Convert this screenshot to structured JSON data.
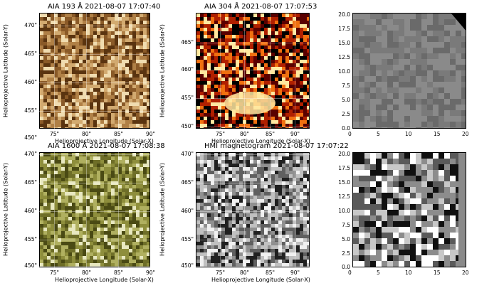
{
  "panels": [
    {
      "title": "AIA 193 Å 2021-08-07 17:07:40",
      "xlabel": "Helioprojective Longitude (Solar-X)",
      "ylabel": "Helioprojective Latitude (Solar-Y)",
      "xticks": [
        "75\"",
        "80\"",
        "85\"",
        "90\""
      ],
      "yticks": [
        "470\"",
        "465\"",
        "460\"",
        "455\"",
        "450\""
      ]
    },
    {
      "title": "AIA 304 Å 2021-08-07 17:07:53",
      "xlabel": "Helioprojective Longitude (Solar-X)",
      "ylabel": "Helioprojective Latitude (Solar-Y)",
      "xticks": [
        "75\"",
        "80\"",
        "85\"",
        "90\""
      ],
      "yticks": [
        "465\"",
        "460\"",
        "455\"",
        "450\""
      ]
    },
    {
      "title": "",
      "xlabel": "",
      "ylabel": "",
      "xticks": [
        "0",
        "5",
        "10",
        "15",
        "20"
      ],
      "yticks": [
        "20.0",
        "17.5",
        "15.0",
        "12.5",
        "10.0",
        "7.5",
        "5.0",
        "2.5",
        "0.0"
      ]
    },
    {
      "title": "AIA 1600 Å 2021-08-07 17:08:38",
      "xlabel": "Helioprojective Longitude (Solar-X)",
      "ylabel": "Helioprojective Latitude (Solar-Y)",
      "xticks": [
        "75\"",
        "80\"",
        "85\"",
        "90\""
      ],
      "yticks": [
        "470\"",
        "465\"",
        "460\"",
        "455\"",
        "450\""
      ]
    },
    {
      "title": "HMI magnetogram 2021-08-07 17:07:22",
      "xlabel": "Helioprojective Longitude (Solar-X)",
      "ylabel": "Helioprojective Latitude (Solar-Y)",
      "xticks": [
        "75\"",
        "80\"",
        "85\"",
        "90\""
      ],
      "yticks": [
        "470\"",
        "465\"",
        "460\"",
        "455\"",
        "450\""
      ]
    },
    {
      "title": "",
      "xlabel": "",
      "ylabel": "",
      "xticks": [
        "0",
        "5",
        "10",
        "15",
        "20"
      ],
      "yticks": [
        "20.0",
        "17.5",
        "15.0",
        "12.5",
        "10.0",
        "7.5",
        "5.0",
        "2.5",
        "0.0"
      ]
    }
  ],
  "colors": {
    "aia193": [
      "#5a3410",
      "#8a5a28",
      "#b08046",
      "#d2aa70",
      "#f0dcb0"
    ],
    "aia304": [
      "#000000",
      "#5a0000",
      "#b02000",
      "#f07010",
      "#ffe8a0"
    ],
    "gray_panel": [
      "#505050",
      "#6a6a6a",
      "#7a7a7a",
      "#8a8a8a",
      "#9a9a9a"
    ],
    "aia1600": [
      "#4a4a14",
      "#6e6e28",
      "#8e8e3c",
      "#b0b060",
      "#e8e8c0"
    ],
    "hmi": [
      "#202020",
      "#606060",
      "#909090",
      "#c0c0c0",
      "#f0f0f0"
    ],
    "mag_panel": [
      "#101010",
      "#5a5a5a",
      "#8c8c8c",
      "#c8c8c8",
      "#ffffff"
    ]
  }
}
